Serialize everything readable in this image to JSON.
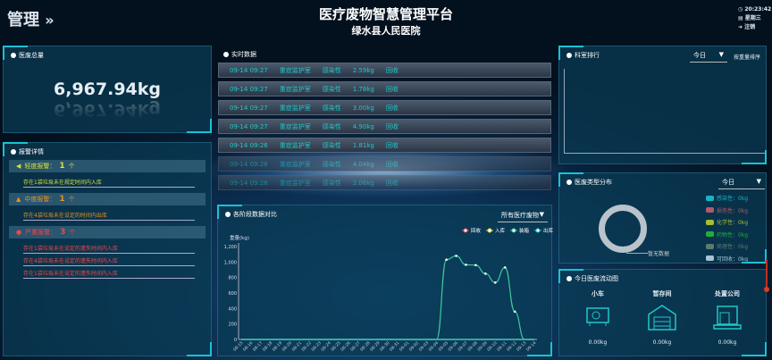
{
  "header": {
    "section": "管理",
    "title": "医疗废物智慧管理平台",
    "subtitle": "绿水县人民医院",
    "time": "20:23:42",
    "weekday": "星期三",
    "logout": "注销"
  },
  "total": {
    "title": "医废总量",
    "value": "6,967.94kg"
  },
  "alarms": {
    "title": "报警详情",
    "groups": [
      {
        "level": "轻度报警：",
        "count": "1",
        "unit": "个",
        "color": "#d8e03a",
        "messages": [
          "存在1袋垃圾未在规定时间内入库"
        ]
      },
      {
        "level": "中度报警：",
        "count": "1",
        "unit": "个",
        "color": "#e8931e",
        "messages": [
          "存在4袋垃圾未在设定的时间内出库"
        ]
      },
      {
        "level": "严重报警：",
        "count": "3",
        "unit": "个",
        "color": "#f04848",
        "messages": [
          "存在1袋垃圾未在设定的遗失时间内入库",
          "存在4袋垃圾未在设定的遗失时间内入库",
          "存在1袋垃圾未在设定的遗失时间内入库"
        ]
      }
    ]
  },
  "realtime": {
    "title": "实时数据",
    "rows": [
      [
        "09-14 09:27",
        "重症监护室",
        "感染性",
        "2.59kg",
        "回收"
      ],
      [
        "09-14 09:27",
        "重症监护室",
        "感染性",
        "1.78kg",
        "回收"
      ],
      [
        "09-14 09:27",
        "重症监护室",
        "感染性",
        "3.00kg",
        "回收"
      ],
      [
        "09-14 09:27",
        "重症监护室",
        "感染性",
        "4.90kg",
        "回收"
      ],
      [
        "09-14 09:26",
        "重症监护室",
        "感染性",
        "1.81kg",
        "回收"
      ],
      [
        "09-14 09:26",
        "重症监护室",
        "感染性",
        "4.04kg",
        "回收"
      ],
      [
        "09-14 09:26",
        "重症监护室",
        "感染性",
        "2.06kg",
        "回收"
      ]
    ]
  },
  "ranking": {
    "title": "科室排行",
    "period": "今日",
    "sort": "按重量排序"
  },
  "types": {
    "title": "医废类型分布",
    "period": "今日",
    "empty": "暂无数据",
    "items": [
      {
        "label": "感染性：0kg",
        "color": "#17b3c6"
      },
      {
        "label": "损伤性：0kg",
        "color": "#b05a6a"
      },
      {
        "label": "化学性：0kg",
        "color": "#a6bf2a"
      },
      {
        "label": "药物性：0kg",
        "color": "#1fae3c"
      },
      {
        "label": "病理性：0kg",
        "color": "#5d7a6e"
      },
      {
        "label": "可回收：0kg",
        "color": "#a9c4d4"
      }
    ]
  },
  "flow": {
    "title": "今日医废流动图",
    "items": [
      {
        "label": "小车",
        "value": "0.00kg"
      },
      {
        "label": "暂存间",
        "value": "0.00kg"
      },
      {
        "label": "处置公司",
        "value": "0.00kg"
      }
    ]
  },
  "chart_data": {
    "type": "line",
    "title": "各阶段数据对比",
    "filter": "所有医疗废物",
    "ylabel": "重量(kg)",
    "ylim": [
      0,
      1200
    ],
    "yticks": [
      "0",
      "200",
      "400",
      "600",
      "800",
      "1,000",
      "1,200"
    ],
    "categories": [
      "08-15",
      "08-16",
      "08-17",
      "08-18",
      "08-19",
      "08-20",
      "08-21",
      "08-22",
      "08-23",
      "08-24",
      "08-25",
      "08-26",
      "08-27",
      "08-28",
      "08-29",
      "08-30",
      "08-31",
      "09-01",
      "09-02",
      "09-03",
      "09-04",
      "09-05",
      "09-06",
      "09-07",
      "09-08",
      "09-09",
      "09-10",
      "09-11",
      "09-12",
      "09-13",
      "09-14"
    ],
    "series": [
      {
        "name": "回收",
        "color": "#e05050",
        "values": [
          0,
          0,
          0,
          0,
          0,
          0,
          0,
          0,
          0,
          0,
          0,
          0,
          0,
          0,
          0,
          0,
          0,
          0,
          0,
          0,
          0,
          0,
          0,
          0,
          0,
          0,
          0,
          0,
          0,
          0,
          0
        ]
      },
      {
        "name": "入库",
        "color": "#d8d83a",
        "values": [
          0,
          0,
          0,
          0,
          0,
          0,
          0,
          0,
          0,
          0,
          0,
          0,
          0,
          0,
          0,
          0,
          0,
          0,
          0,
          0,
          0,
          0,
          0,
          0,
          0,
          0,
          0,
          0,
          0,
          0,
          0
        ]
      },
      {
        "name": "装箱",
        "color": "#3ec99a",
        "values": [
          0,
          0,
          0,
          0,
          0,
          0,
          0,
          0,
          0,
          0,
          0,
          0,
          0,
          0,
          0,
          0,
          0,
          0,
          0,
          0,
          0,
          1030,
          1080,
          965,
          960,
          850,
          735,
          930,
          360,
          0,
          0
        ]
      },
      {
        "name": "出库",
        "color": "#1fc8d8",
        "values": [
          0,
          0,
          0,
          0,
          0,
          0,
          0,
          0,
          0,
          0,
          0,
          0,
          0,
          0,
          0,
          0,
          0,
          0,
          0,
          0,
          0,
          0,
          0,
          0,
          0,
          0,
          0,
          0,
          0,
          0,
          0
        ]
      }
    ],
    "legend": "top-right",
    "grid": false
  }
}
